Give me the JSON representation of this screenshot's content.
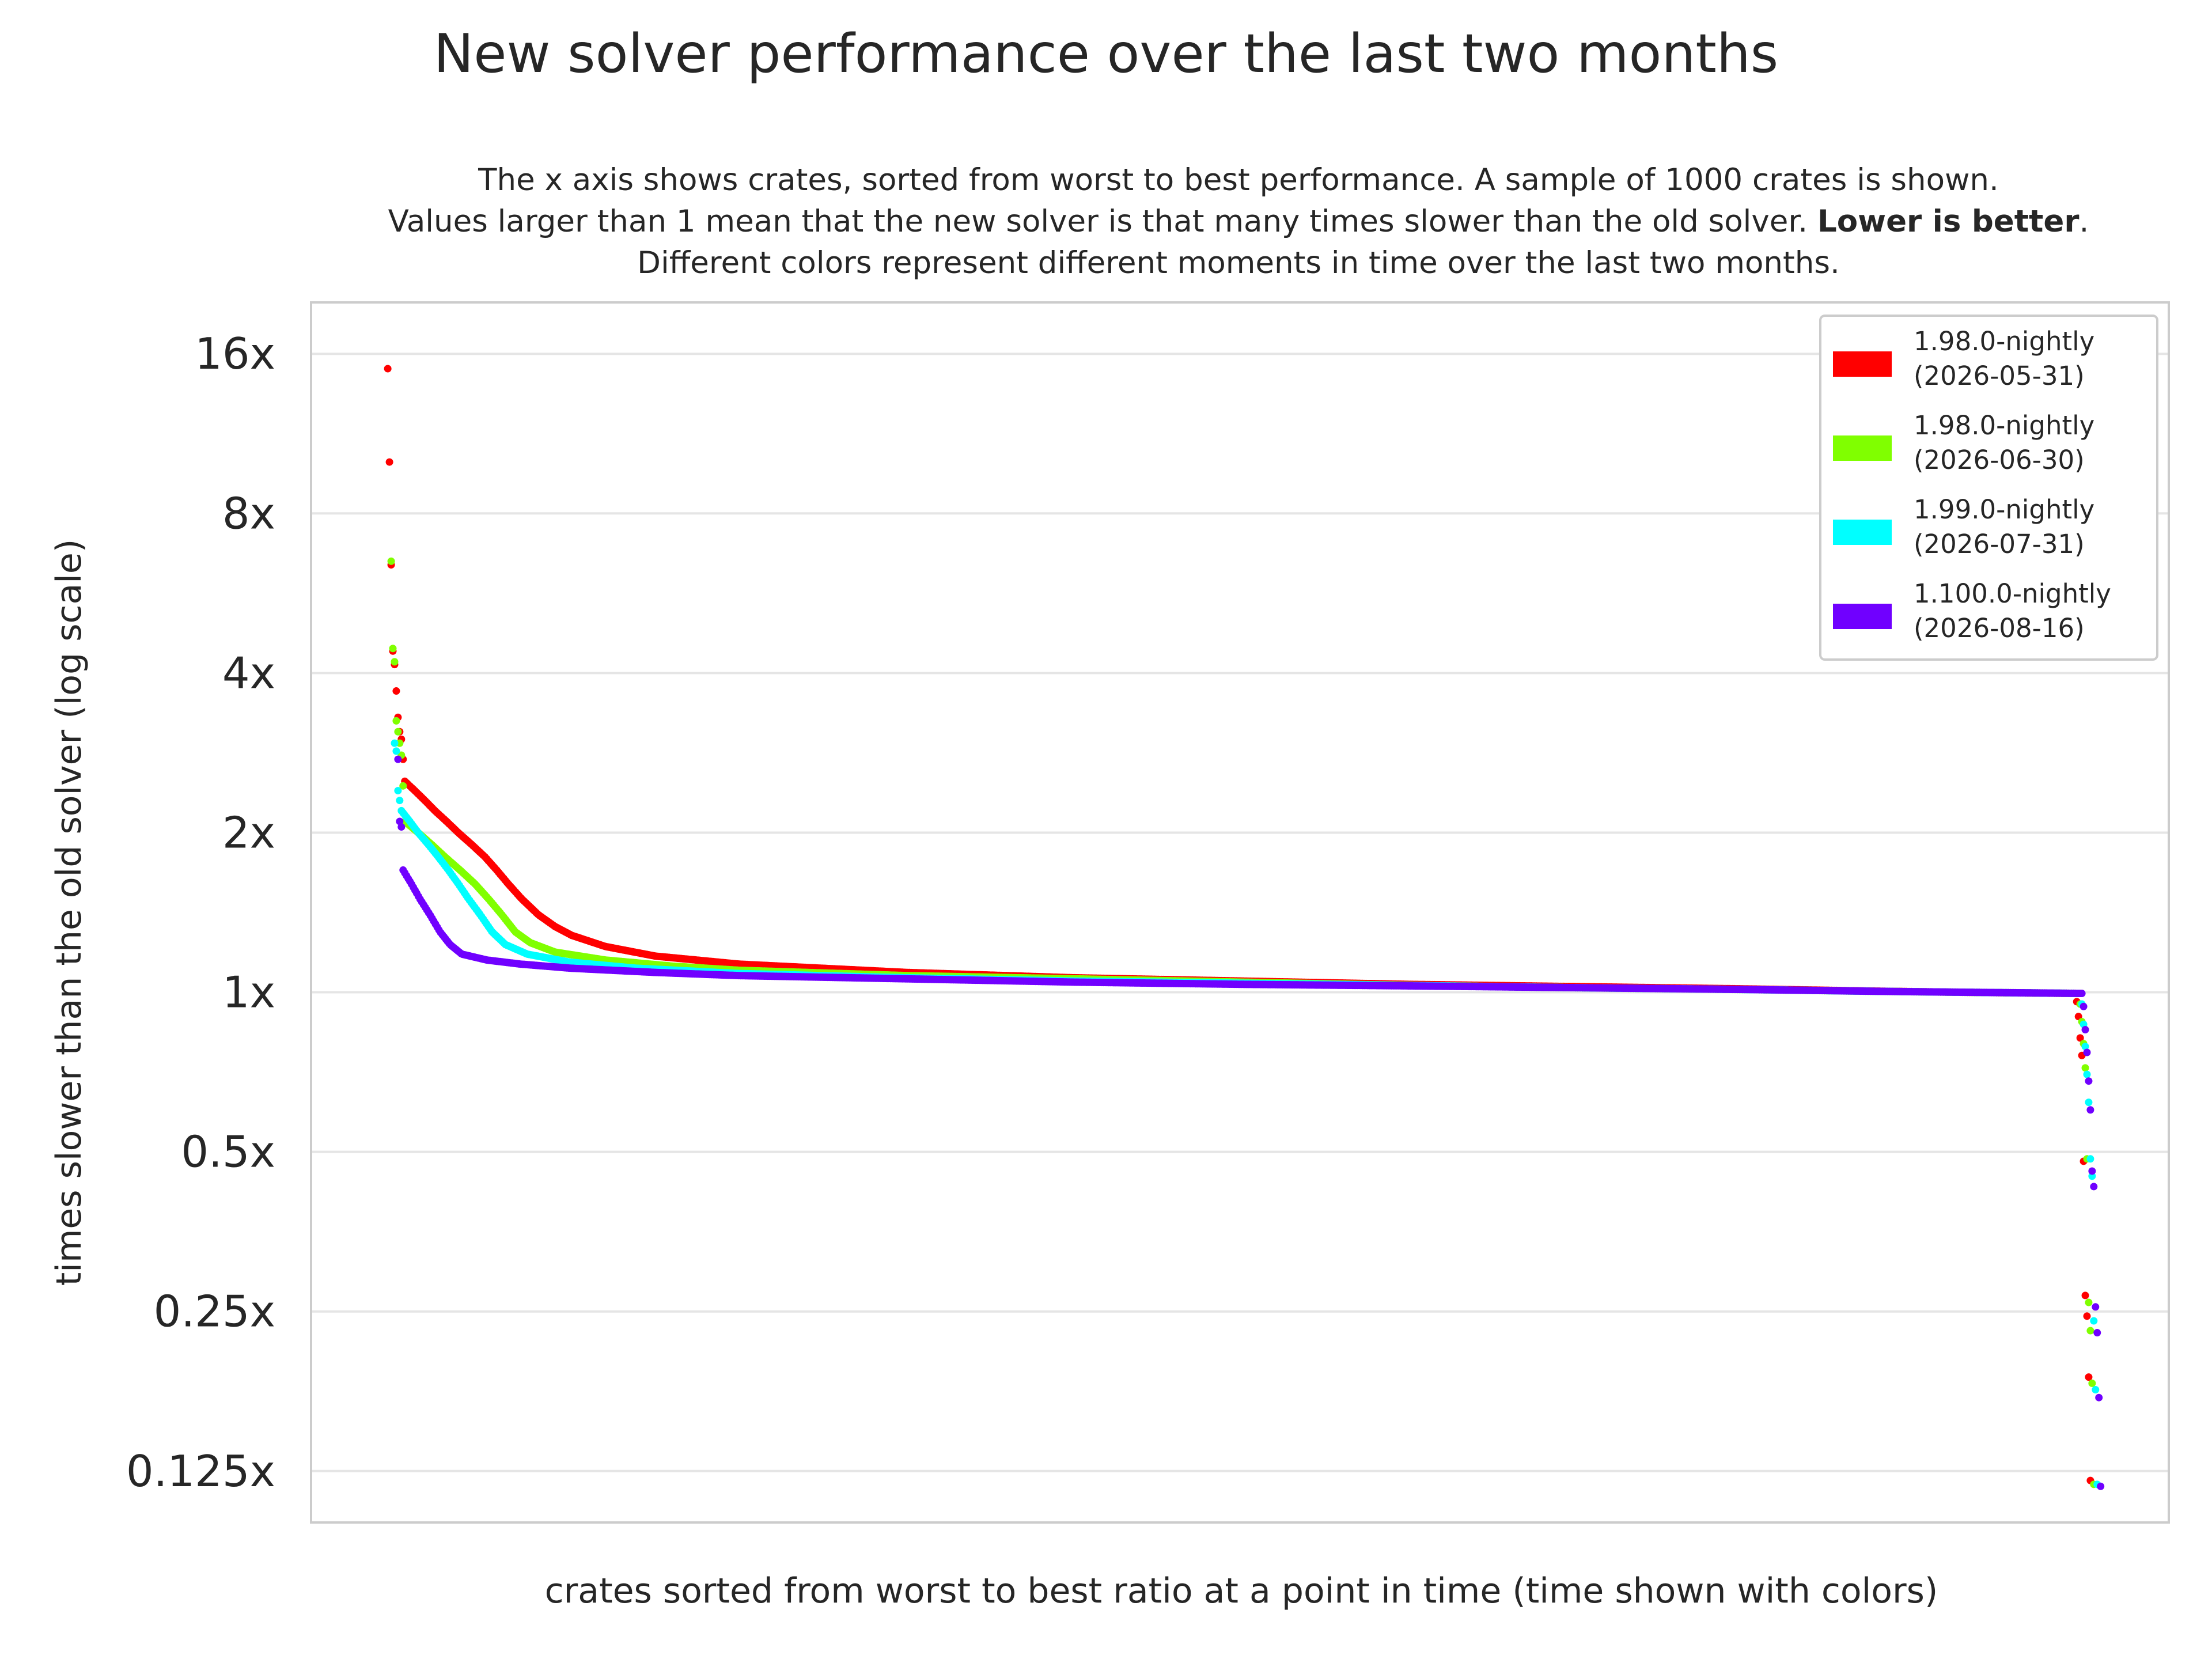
{
  "chart_data": {
    "type": "scatter",
    "title": "New solver performance over the last two months",
    "subtitle_lines": [
      "The x axis shows crates, sorted from worst to best performance. A sample of 1000 crates is shown.",
      "Values larger than 1 mean that the new solver is that many times slower than the old solver.",
      "Lower is better",
      ".",
      "Different colors represent different moments in time over the last two months."
    ],
    "xlabel": "crates sorted from worst to best ratio at a point in time (time shown with colors)",
    "ylabel": "times slower than the old solver (log scale)",
    "y_scale": "log2",
    "ylim": [
      0.1,
      20
    ],
    "xlim": [
      -45,
      1045
    ],
    "yticks": [
      {
        "value": 16,
        "label": "16x"
      },
      {
        "value": 8,
        "label": "8x"
      },
      {
        "value": 4,
        "label": "4x"
      },
      {
        "value": 2,
        "label": "2x"
      },
      {
        "value": 1,
        "label": "1x"
      },
      {
        "value": 0.5,
        "label": "0.5x"
      },
      {
        "value": 0.25,
        "label": "0.25x"
      },
      {
        "value": 0.125,
        "label": "0.125x"
      }
    ],
    "grid": true,
    "legend_position": "top-right",
    "series": [
      {
        "name": "1.98.0-nightly (2026-05-31)",
        "legend_lines": [
          "1.98.0-nightly",
          "(2026-05-31)"
        ],
        "color": "#ff0000",
        "x_offset": 0,
        "head": [
          15,
          10,
          6.4,
          4.4,
          4.15,
          3.7,
          3.3,
          3.1,
          3.0,
          2.75
        ],
        "tail": [
          0.96,
          0.9,
          0.82,
          0.76,
          0.48,
          0.268,
          0.245,
          0.188,
          0.12
        ],
        "profile": [
          [
            0,
            2.5
          ],
          [
            0.006,
            2.4
          ],
          [
            0.012,
            2.3
          ],
          [
            0.018,
            2.2
          ],
          [
            0.025,
            2.1
          ],
          [
            0.032,
            2.0
          ],
          [
            0.04,
            1.9
          ],
          [
            0.048,
            1.8
          ],
          [
            0.055,
            1.7
          ],
          [
            0.062,
            1.6
          ],
          [
            0.07,
            1.5
          ],
          [
            0.08,
            1.4
          ],
          [
            0.09,
            1.33
          ],
          [
            0.1,
            1.28
          ],
          [
            0.12,
            1.22
          ],
          [
            0.15,
            1.17
          ],
          [
            0.2,
            1.13
          ],
          [
            0.3,
            1.09
          ],
          [
            0.4,
            1.065
          ],
          [
            0.5,
            1.05
          ],
          [
            0.6,
            1.035
          ],
          [
            0.7,
            1.025
          ],
          [
            0.8,
            1.015
          ],
          [
            0.88,
            1.005
          ],
          [
            0.93,
            1.0
          ],
          [
            1.0,
            0.995
          ]
        ]
      },
      {
        "name": "1.98.0-nightly (2026-06-30)",
        "legend_lines": [
          "1.98.0-nightly",
          "(2026-06-30)"
        ],
        "color": "#80ff00",
        "x_offset": 2,
        "head": [
          6.5,
          4.45,
          4.2,
          3.25,
          3.1,
          2.95,
          2.8,
          2.45
        ],
        "tail": [
          0.95,
          0.88,
          0.8,
          0.72,
          0.485,
          0.26,
          0.23,
          0.183,
          0.118
        ],
        "profile": [
          [
            0,
            2.1
          ],
          [
            0.008,
            2.0
          ],
          [
            0.016,
            1.9
          ],
          [
            0.024,
            1.8
          ],
          [
            0.033,
            1.7
          ],
          [
            0.042,
            1.6
          ],
          [
            0.05,
            1.5
          ],
          [
            0.058,
            1.4
          ],
          [
            0.066,
            1.3
          ],
          [
            0.075,
            1.24
          ],
          [
            0.09,
            1.19
          ],
          [
            0.12,
            1.15
          ],
          [
            0.16,
            1.12
          ],
          [
            0.2,
            1.1
          ],
          [
            0.3,
            1.075
          ],
          [
            0.4,
            1.06
          ],
          [
            0.5,
            1.045
          ],
          [
            0.6,
            1.03
          ],
          [
            0.7,
            1.02
          ],
          [
            0.8,
            1.012
          ],
          [
            0.88,
            1.004
          ],
          [
            0.93,
            1.0
          ],
          [
            1.0,
            0.995
          ]
        ]
      },
      {
        "name": "1.99.0-nightly (2026-07-31)",
        "legend_lines": [
          "1.99.0-nightly",
          "(2026-07-31)"
        ],
        "color": "#00ffff",
        "x_offset": 4,
        "head": [
          2.95,
          2.85,
          2.4,
          2.3
        ],
        "tail": [
          0.95,
          0.87,
          0.79,
          0.7,
          0.62,
          0.485,
          0.45,
          0.24,
          0.178,
          0.118
        ],
        "profile": [
          [
            0,
            2.2
          ],
          [
            0.005,
            2.1
          ],
          [
            0.01,
            2.0
          ],
          [
            0.016,
            1.9
          ],
          [
            0.022,
            1.8
          ],
          [
            0.028,
            1.7
          ],
          [
            0.034,
            1.6
          ],
          [
            0.04,
            1.5
          ],
          [
            0.047,
            1.4
          ],
          [
            0.054,
            1.3
          ],
          [
            0.062,
            1.23
          ],
          [
            0.075,
            1.18
          ],
          [
            0.1,
            1.14
          ],
          [
            0.14,
            1.11
          ],
          [
            0.2,
            1.085
          ],
          [
            0.3,
            1.065
          ],
          [
            0.4,
            1.05
          ],
          [
            0.5,
            1.04
          ],
          [
            0.6,
            1.03
          ],
          [
            0.7,
            1.02
          ],
          [
            0.8,
            1.012
          ],
          [
            0.88,
            1.004
          ],
          [
            0.93,
            1.0
          ],
          [
            1.0,
            0.995
          ]
        ]
      },
      {
        "name": "1.100.0-nightly (2026-08-16)",
        "legend_lines": [
          "1.100.0-nightly",
          "(2026-08-16)"
        ],
        "color": "#7000ff",
        "x_offset": 6,
        "head": [
          2.75,
          2.1,
          2.05
        ],
        "tail": [
          0.94,
          0.85,
          0.77,
          0.68,
          0.6,
          0.46,
          0.43,
          0.255,
          0.228,
          0.172,
          0.117
        ],
        "profile": [
          [
            0,
            1.7
          ],
          [
            0.005,
            1.6
          ],
          [
            0.01,
            1.5
          ],
          [
            0.016,
            1.4
          ],
          [
            0.022,
            1.3
          ],
          [
            0.028,
            1.23
          ],
          [
            0.035,
            1.18
          ],
          [
            0.05,
            1.15
          ],
          [
            0.07,
            1.13
          ],
          [
            0.1,
            1.11
          ],
          [
            0.15,
            1.09
          ],
          [
            0.2,
            1.075
          ],
          [
            0.3,
            1.06
          ],
          [
            0.4,
            1.045
          ],
          [
            0.5,
            1.035
          ],
          [
            0.6,
            1.028
          ],
          [
            0.7,
            1.02
          ],
          [
            0.8,
            1.012
          ],
          [
            0.88,
            1.004
          ],
          [
            0.93,
            1.0
          ],
          [
            1.0,
            0.995
          ]
        ]
      }
    ]
  }
}
